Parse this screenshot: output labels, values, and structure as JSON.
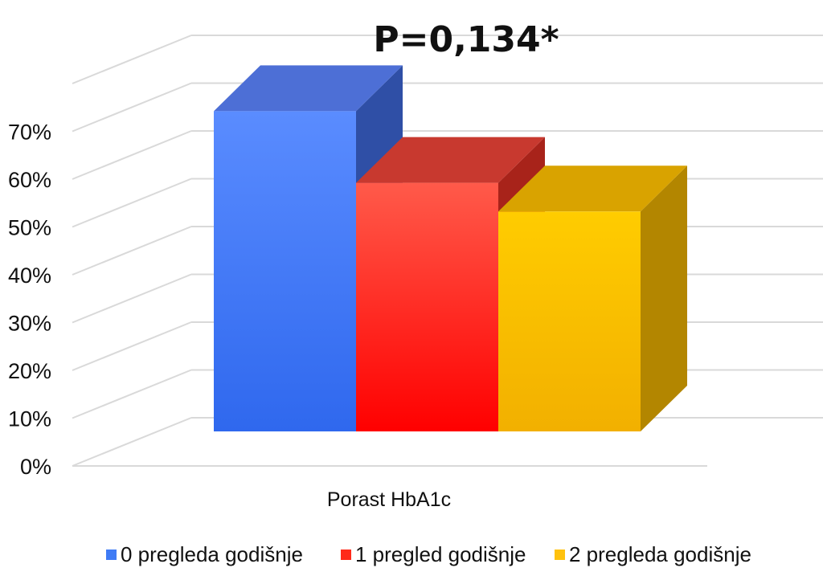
{
  "chart_data": {
    "type": "bar",
    "title": "P=0,134*",
    "categories": [
      "Porast HbA1c"
    ],
    "series": [
      {
        "name": "0 pregleda godišnje",
        "values": [
          67
        ]
      },
      {
        "name": "1 pregled godišnje",
        "values": [
          52
        ]
      },
      {
        "name": "2 pregleda godišnje",
        "values": [
          46
        ]
      }
    ],
    "yticks": [
      "0%",
      "10%",
      "20%",
      "30%",
      "40%",
      "50%",
      "60%",
      "70%"
    ],
    "ylim": [
      0,
      70
    ],
    "xlabel": "",
    "ylabel": "",
    "grid": true,
    "three_d": true,
    "legend_position": "bottom",
    "colors": {
      "series_front": [
        "#3f7bf5",
        "#ff2a1a",
        "#ffc20e"
      ],
      "series_top": [
        "#4d6fd6",
        "#c8392f",
        "#d9a300"
      ],
      "series_side": [
        "#2f4fa6",
        "#a8231a",
        "#b38600"
      ],
      "grid": "#d9d9d9"
    }
  }
}
